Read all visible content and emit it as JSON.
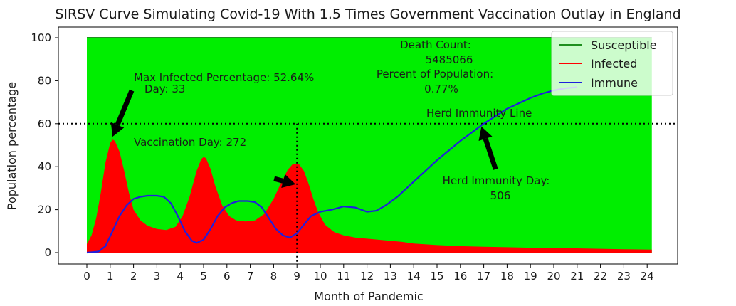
{
  "chart_data": {
    "type": "area",
    "title": "SIRSV Curve Simulating Covid-19 With 1.5 Times Government Vaccination Outlay in England",
    "xlabel": "Month of Pandemic",
    "ylabel": "Population percentage",
    "xlim": [
      -0.5,
      25.0
    ],
    "ylim": [
      -5,
      103
    ],
    "xticks": [
      0,
      1,
      2,
      3,
      4,
      5,
      6,
      7,
      8,
      9,
      10,
      11,
      12,
      13,
      14,
      15,
      16,
      17,
      18,
      19,
      20,
      21,
      22,
      23,
      24
    ],
    "yticks": [
      0,
      20,
      40,
      60,
      80,
      100
    ],
    "grid": false,
    "legend_position": "top-right",
    "colors": {
      "susceptible": "#00ee00",
      "infected": "#ff0000",
      "immune": "#1f1fdd",
      "susceptible_line": "#1f8f1f"
    },
    "series": [
      {
        "name": "Susceptible",
        "type": "area",
        "x": [
          0,
          24.2
        ],
        "y": [
          100,
          100
        ]
      },
      {
        "name": "Infected",
        "type": "area",
        "x": [
          0,
          0.2,
          0.4,
          0.6,
          0.8,
          1.0,
          1.1,
          1.2,
          1.4,
          1.6,
          1.8,
          2.0,
          2.3,
          2.6,
          3.0,
          3.4,
          3.8,
          4.1,
          4.4,
          4.7,
          4.9,
          5.0,
          5.1,
          5.3,
          5.5,
          5.8,
          6.1,
          6.4,
          6.8,
          7.2,
          7.6,
          8.0,
          8.3,
          8.6,
          8.8,
          9.0,
          9.1,
          9.3,
          9.5,
          9.7,
          9.9,
          10.2,
          10.6,
          11.0,
          11.5,
          12.0,
          12.5,
          13.0,
          13.5,
          14.0,
          15.0,
          16.0,
          17.0,
          18.0,
          19.0,
          20.0,
          21.0,
          22.0,
          23.0,
          24.2
        ],
        "y": [
          4,
          8,
          16,
          28,
          42,
          51,
          52.6,
          52,
          47,
          38,
          28,
          20,
          15,
          12.5,
          11,
          10.5,
          12,
          17,
          26,
          38,
          43.5,
          44.5,
          44,
          39,
          31,
          22,
          17,
          15,
          14.5,
          15,
          18,
          25,
          32,
          38.5,
          41,
          41.5,
          41,
          38,
          32,
          25,
          19,
          13,
          9.5,
          8,
          7,
          6.5,
          6,
          5.5,
          5,
          4.2,
          3.5,
          3,
          2.7,
          2.5,
          2.3,
          2.1,
          2,
          1.8,
          1.6,
          1.4
        ]
      },
      {
        "name": "Immune",
        "type": "line",
        "x": [
          0,
          0.5,
          0.8,
          1.1,
          1.4,
          1.7,
          2.0,
          2.3,
          2.6,
          3.0,
          3.3,
          3.6,
          3.9,
          4.2,
          4.5,
          4.7,
          5.0,
          5.3,
          5.6,
          5.9,
          6.2,
          6.5,
          6.9,
          7.2,
          7.5,
          7.8,
          8.1,
          8.4,
          8.7,
          9.0,
          9.3,
          9.6,
          10.0,
          10.5,
          11.0,
          11.5,
          12.0,
          12.4,
          12.8,
          13.3,
          14.0,
          15.0,
          16.0,
          17.0,
          18.0,
          19.0,
          19.5,
          20.0,
          20.5,
          21.0
        ],
        "y": [
          0,
          0.5,
          3,
          10,
          17,
          22,
          25,
          26,
          26.5,
          26.5,
          26,
          23,
          17,
          10,
          5.5,
          4.5,
          6,
          11,
          17,
          21,
          23,
          24,
          24,
          23.5,
          21,
          16,
          11,
          8,
          7,
          9,
          13,
          17,
          19,
          20,
          21.5,
          21,
          19,
          19.5,
          22,
          26,
          33,
          43,
          52,
          60,
          67,
          72,
          74,
          75.5,
          76.5,
          77
        ]
      }
    ],
    "reference_lines": [
      {
        "orientation": "horizontal",
        "y": 60,
        "label": "Herd Immunity Line"
      },
      {
        "orientation": "vertical",
        "x": 9.0
      }
    ],
    "annotations": {
      "max_infected": {
        "label": "Max Infected Percentage: 52.64%",
        "day_label": "Day: 33",
        "point_x": 1.1,
        "point_y": 52.6
      },
      "vaccination": {
        "label": "Vaccination Day: 272",
        "point_x": 9.0,
        "point_y": 50
      },
      "herd_immunity": {
        "label": "Herd Immunity Day:",
        "value": "506",
        "point_x": 16.9,
        "point_y": 60
      },
      "death_count": {
        "label": "Death Count:",
        "value": "5485066"
      },
      "percent_population": {
        "label": "Percent of Population:",
        "value": "0.77%"
      }
    }
  }
}
